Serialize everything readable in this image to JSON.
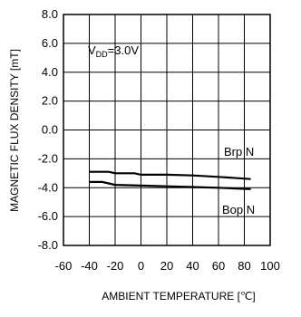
{
  "chart_data": {
    "type": "line",
    "title": "",
    "xlabel": "AMBIENT TEMPERATURE [℃]",
    "ylabel": "MAGNETIC FLUX DENSITY [mT]",
    "xlim": [
      -60,
      100
    ],
    "ylim": [
      -8,
      8
    ],
    "x_ticks": [
      -60,
      -40,
      -20,
      0,
      20,
      40,
      60,
      80,
      100
    ],
    "y_ticks": [
      8,
      6,
      4,
      2,
      0,
      -2,
      -4,
      -6,
      -8
    ],
    "x_tick_labels": [
      "-60",
      "-40",
      "-20",
      "0",
      "20",
      "40",
      "60",
      "80",
      "100"
    ],
    "y_tick_labels": [
      "8.0",
      "6.0",
      "4.0",
      "2.0",
      "0.0",
      "-2.0",
      "-4.0",
      "-6.0",
      "-8.0"
    ],
    "grid": true,
    "annotation": {
      "prefix": "V",
      "subscript": "DD",
      "suffix": "=3.0V"
    },
    "series": [
      {
        "name": "Brp N",
        "x": [
          -40,
          -25,
          -20,
          -5,
          0,
          20,
          40,
          60,
          85
        ],
        "y": [
          -2.9,
          -2.9,
          -3.0,
          -3.0,
          -3.1,
          -3.1,
          -3.15,
          -3.25,
          -3.4
        ]
      },
      {
        "name": "Bop N",
        "x": [
          -40,
          -30,
          -20,
          0,
          20,
          40,
          60,
          85
        ],
        "y": [
          -3.6,
          -3.6,
          -3.8,
          -3.85,
          -3.9,
          -3.95,
          -4.0,
          -4.1
        ]
      }
    ]
  }
}
